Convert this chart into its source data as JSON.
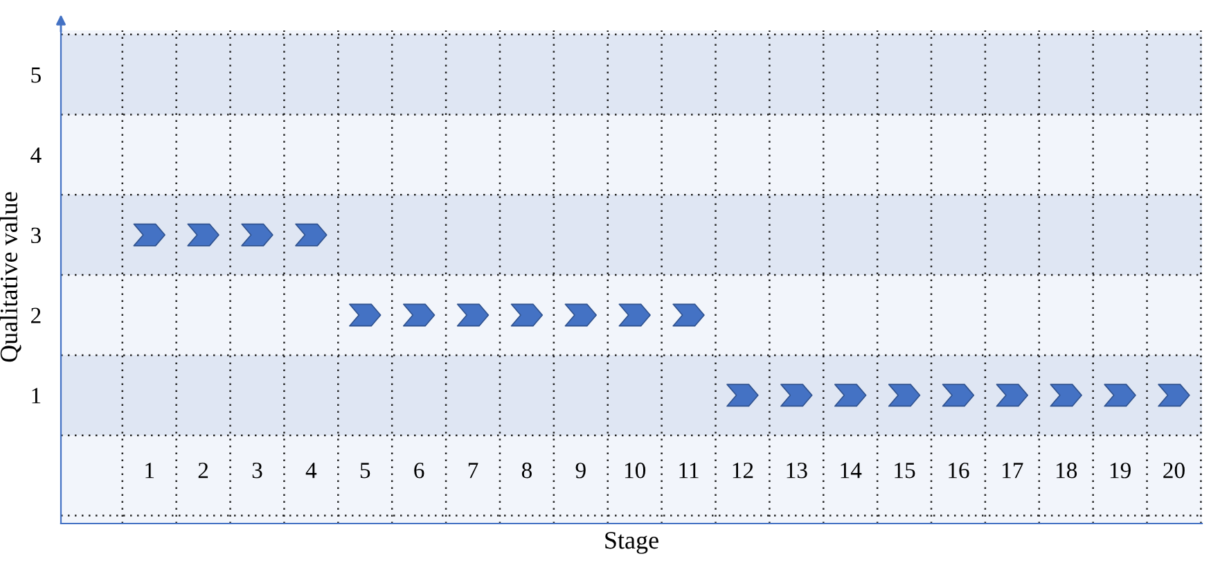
{
  "chart_data": {
    "type": "scatter",
    "xlabel": "Stage",
    "ylabel": "Qualitative value",
    "categories": [
      "1",
      "2",
      "3",
      "4",
      "5",
      "6",
      "7",
      "8",
      "9",
      "10",
      "11",
      "12",
      "13",
      "14",
      "15",
      "16",
      "17",
      "18",
      "19",
      "20"
    ],
    "series": [
      {
        "color": "#4472c4",
        "values": [
          3,
          3,
          3,
          3,
          2,
          2,
          2,
          2,
          2,
          2,
          2,
          1,
          1,
          1,
          1,
          1,
          1,
          1,
          1,
          1
        ]
      }
    ],
    "ylim": [
      -0.6,
      5.55
    ],
    "yticks": [
      1,
      2,
      3,
      4,
      5
    ],
    "bands": [
      {
        "axis": "y",
        "from": 0.5,
        "to": 1.5,
        "color": "#dfe6f3"
      },
      {
        "axis": "y",
        "from": 2.5,
        "to": 3.5,
        "color": "#dfe6f3"
      },
      {
        "axis": "y",
        "from": 4.5,
        "to": 5.5,
        "color": "#dfe6f3"
      }
    ],
    "grid": true,
    "legend": false
  }
}
